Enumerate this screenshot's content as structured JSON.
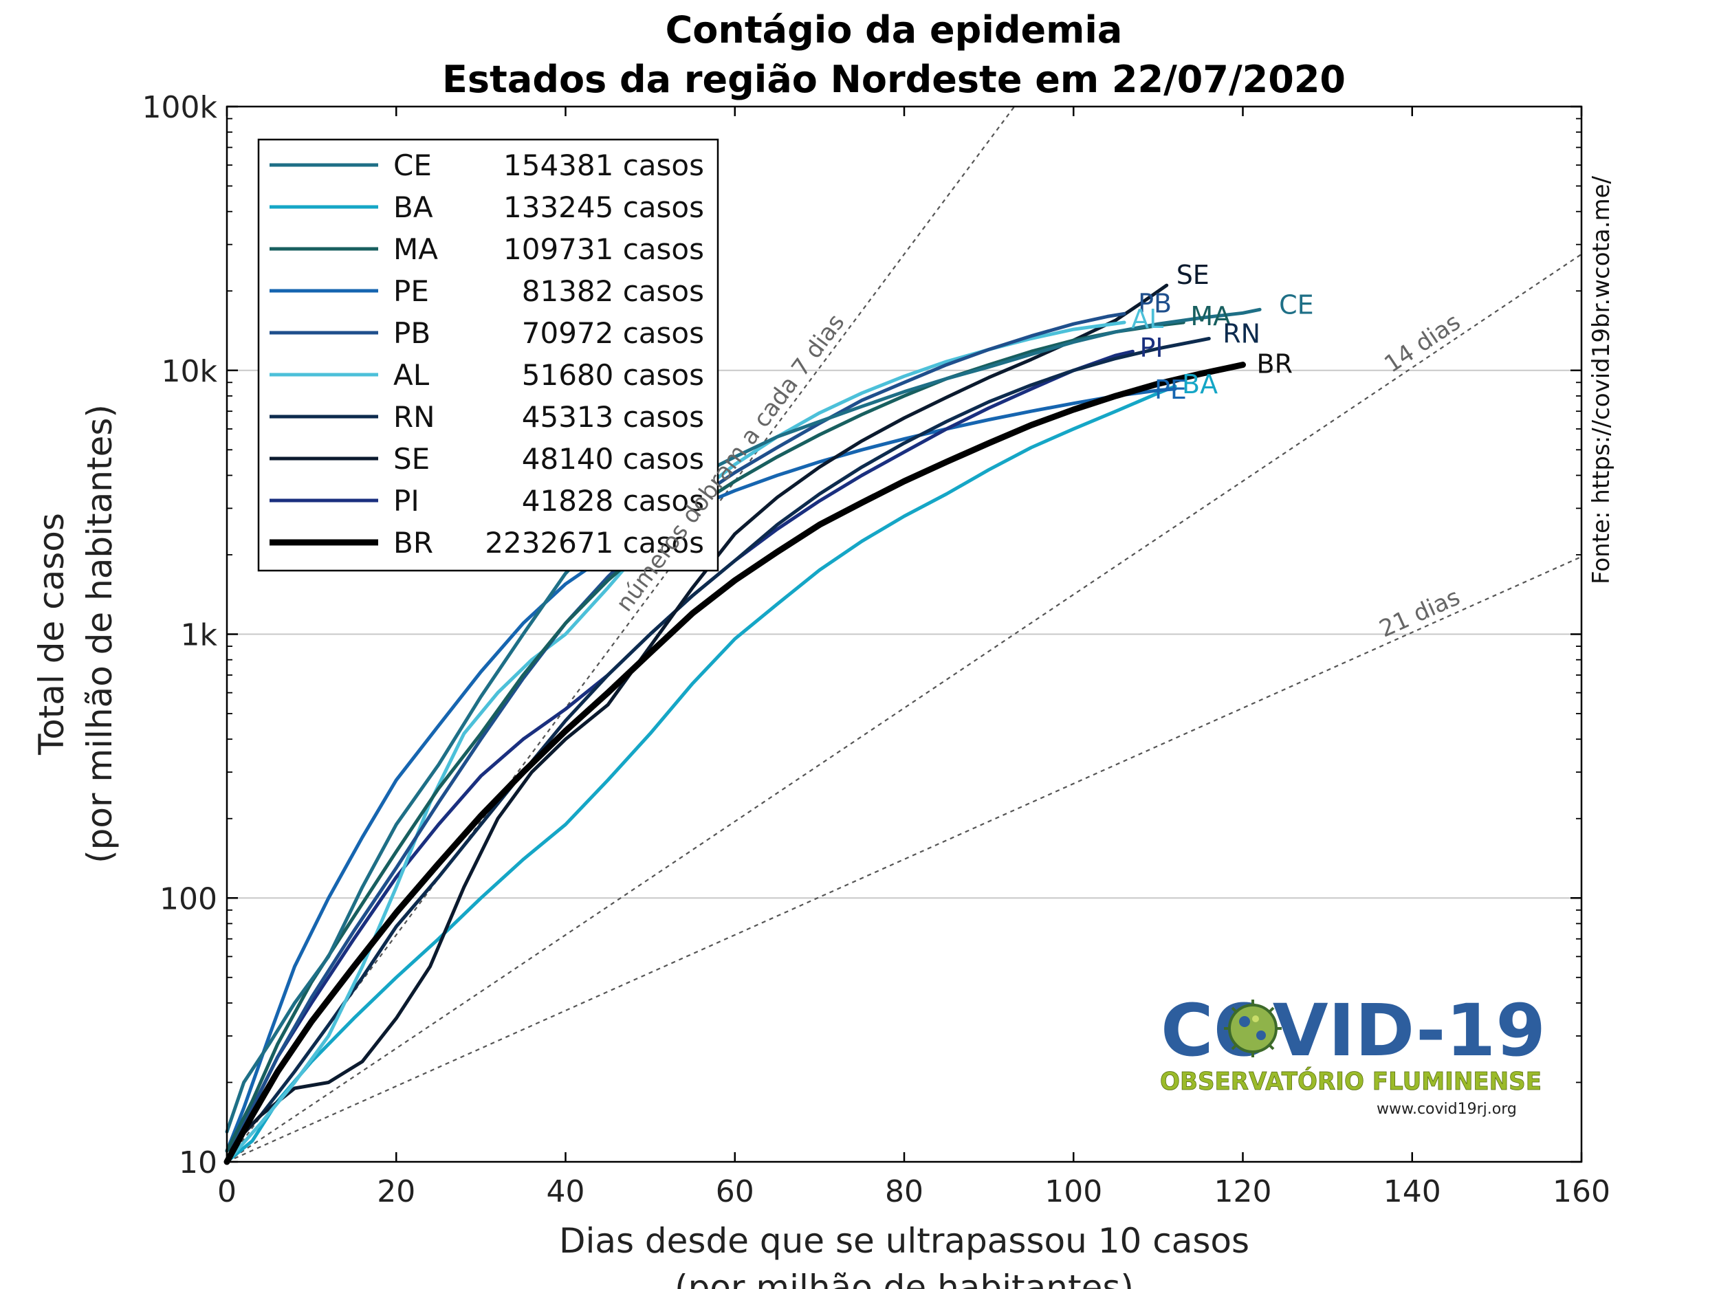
{
  "chart_data": {
    "type": "line",
    "title": "Contágio da epidemia",
    "subtitle": "Estados da região Nordeste em 22/07/2020",
    "xlabel": "Dias desde que se ultrapassou 10 casos",
    "xlabel2": "(por milhão de habitantes)",
    "ylabel": "Total de casos",
    "ylabel2": "(por milhão de habitantes)",
    "xlim": [
      0,
      160
    ],
    "ylim": [
      10,
      100000
    ],
    "yscale": "log",
    "grid": "horizontal",
    "legend_position": "top-left",
    "xticks": [
      "0",
      "20",
      "40",
      "60",
      "80",
      "100",
      "120",
      "140",
      "160"
    ],
    "yticks": [
      {
        "value": 10,
        "label": "10"
      },
      {
        "value": 100,
        "label": "100"
      },
      {
        "value": 1000,
        "label": "1k"
      },
      {
        "value": 10000,
        "label": "10k"
      },
      {
        "value": 100000,
        "label": "100k"
      }
    ],
    "source_text": "Fonte: https://covid19br.wcota.me/",
    "reference_lines": [
      {
        "label": "números dobram a cada 7 dias",
        "doubling_days": 7
      },
      {
        "label": "14 dias",
        "doubling_days": 14
      },
      {
        "label": "21 dias",
        "doubling_days": 21
      }
    ],
    "series": [
      {
        "name": "CE",
        "cases": "154381 casos",
        "color": "#1e6f86",
        "width": 5,
        "points": [
          [
            0,
            13
          ],
          [
            2,
            20
          ],
          [
            5,
            28
          ],
          [
            8,
            40
          ],
          [
            12,
            60
          ],
          [
            16,
            110
          ],
          [
            20,
            190
          ],
          [
            25,
            320
          ],
          [
            30,
            580
          ],
          [
            35,
            1000
          ],
          [
            40,
            1700
          ],
          [
            45,
            2500
          ],
          [
            50,
            3200
          ],
          [
            55,
            3900
          ],
          [
            60,
            4700
          ],
          [
            65,
            5600
          ],
          [
            70,
            6400
          ],
          [
            75,
            7300
          ],
          [
            80,
            8300
          ],
          [
            85,
            9300
          ],
          [
            90,
            10300
          ],
          [
            95,
            11500
          ],
          [
            100,
            12800
          ],
          [
            105,
            14000
          ],
          [
            110,
            15000
          ],
          [
            115,
            15800
          ],
          [
            120,
            16500
          ],
          [
            122,
            17000
          ]
        ]
      },
      {
        "name": "BA",
        "cases": "133245 casos",
        "color": "#15a6c6",
        "width": 5,
        "points": [
          [
            0,
            10
          ],
          [
            3,
            12
          ],
          [
            6,
            17
          ],
          [
            10,
            24
          ],
          [
            15,
            35
          ],
          [
            20,
            50
          ],
          [
            25,
            70
          ],
          [
            30,
            100
          ],
          [
            35,
            140
          ],
          [
            40,
            190
          ],
          [
            45,
            280
          ],
          [
            50,
            420
          ],
          [
            55,
            650
          ],
          [
            60,
            960
          ],
          [
            65,
            1300
          ],
          [
            70,
            1750
          ],
          [
            75,
            2250
          ],
          [
            80,
            2800
          ],
          [
            85,
            3400
          ],
          [
            90,
            4200
          ],
          [
            95,
            5100
          ],
          [
            100,
            6000
          ],
          [
            105,
            7000
          ],
          [
            110,
            8200
          ],
          [
            112,
            8700
          ]
        ]
      },
      {
        "name": "MA",
        "cases": "109731 casos",
        "color": "#185f5f",
        "width": 5,
        "points": [
          [
            0,
            11
          ],
          [
            3,
            17
          ],
          [
            6,
            28
          ],
          [
            10,
            48
          ],
          [
            15,
            85
          ],
          [
            20,
            150
          ],
          [
            25,
            260
          ],
          [
            30,
            420
          ],
          [
            35,
            700
          ],
          [
            40,
            1100
          ],
          [
            45,
            1600
          ],
          [
            50,
            2200
          ],
          [
            55,
            3000
          ],
          [
            60,
            3800
          ],
          [
            65,
            4700
          ],
          [
            70,
            5700
          ],
          [
            75,
            6800
          ],
          [
            80,
            8000
          ],
          [
            85,
            9300
          ],
          [
            90,
            10500
          ],
          [
            95,
            11800
          ],
          [
            100,
            13000
          ],
          [
            105,
            14000
          ],
          [
            110,
            14800
          ],
          [
            113,
            15200
          ]
        ]
      },
      {
        "name": "PE",
        "cases": "81382 casos",
        "color": "#1665b0",
        "width": 5,
        "points": [
          [
            0,
            11
          ],
          [
            2,
            16
          ],
          [
            5,
            30
          ],
          [
            8,
            55
          ],
          [
            12,
            100
          ],
          [
            16,
            170
          ],
          [
            20,
            280
          ],
          [
            25,
            450
          ],
          [
            30,
            720
          ],
          [
            35,
            1100
          ],
          [
            40,
            1550
          ],
          [
            45,
            2000
          ],
          [
            50,
            2500
          ],
          [
            55,
            3000
          ],
          [
            60,
            3500
          ],
          [
            65,
            4000
          ],
          [
            70,
            4500
          ],
          [
            75,
            5000
          ],
          [
            80,
            5500
          ],
          [
            85,
            6000
          ],
          [
            90,
            6500
          ],
          [
            95,
            7000
          ],
          [
            100,
            7500
          ],
          [
            105,
            8000
          ],
          [
            110,
            8400
          ],
          [
            112,
            8500
          ]
        ]
      },
      {
        "name": "PB",
        "cases": "70972 casos",
        "color": "#1f4f8c",
        "width": 5,
        "points": [
          [
            0,
            11
          ],
          [
            3,
            16
          ],
          [
            6,
            25
          ],
          [
            10,
            42
          ],
          [
            15,
            75
          ],
          [
            20,
            130
          ],
          [
            25,
            230
          ],
          [
            30,
            400
          ],
          [
            35,
            680
          ],
          [
            40,
            1100
          ],
          [
            45,
            1650
          ],
          [
            50,
            2350
          ],
          [
            55,
            3200
          ],
          [
            60,
            4100
          ],
          [
            65,
            5100
          ],
          [
            70,
            6300
          ],
          [
            75,
            7700
          ],
          [
            80,
            9000
          ],
          [
            85,
            10500
          ],
          [
            90,
            12000
          ],
          [
            95,
            13500
          ],
          [
            100,
            15000
          ],
          [
            104,
            16000
          ],
          [
            106,
            16400
          ]
        ]
      },
      {
        "name": "AL",
        "cases": "51680 casos",
        "color": "#4cc0d9",
        "width": 5,
        "points": [
          [
            0,
            10
          ],
          [
            4,
            14
          ],
          [
            8,
            20
          ],
          [
            12,
            30
          ],
          [
            16,
            55
          ],
          [
            20,
            110
          ],
          [
            24,
            230
          ],
          [
            28,
            420
          ],
          [
            32,
            600
          ],
          [
            36,
            800
          ],
          [
            40,
            1000
          ],
          [
            45,
            1500
          ],
          [
            50,
            2300
          ],
          [
            55,
            3300
          ],
          [
            60,
            4400
          ],
          [
            65,
            5600
          ],
          [
            70,
            6900
          ],
          [
            75,
            8200
          ],
          [
            80,
            9500
          ],
          [
            85,
            10800
          ],
          [
            90,
            12000
          ],
          [
            95,
            13200
          ],
          [
            100,
            14300
          ],
          [
            106,
            15200
          ]
        ]
      },
      {
        "name": "RN",
        "cases": "45313 casos",
        "color": "#0d2b4e",
        "width": 5,
        "points": [
          [
            0,
            11
          ],
          [
            4,
            15
          ],
          [
            8,
            22
          ],
          [
            12,
            33
          ],
          [
            16,
            50
          ],
          [
            20,
            78
          ],
          [
            25,
            120
          ],
          [
            30,
            190
          ],
          [
            35,
            300
          ],
          [
            40,
            470
          ],
          [
            45,
            700
          ],
          [
            50,
            1000
          ],
          [
            55,
            1400
          ],
          [
            60,
            1900
          ],
          [
            65,
            2600
          ],
          [
            70,
            3400
          ],
          [
            75,
            4300
          ],
          [
            80,
            5300
          ],
          [
            85,
            6400
          ],
          [
            90,
            7600
          ],
          [
            95,
            8800
          ],
          [
            100,
            10000
          ],
          [
            105,
            11100
          ],
          [
            110,
            12100
          ],
          [
            115,
            13000
          ],
          [
            116,
            13200
          ]
        ]
      },
      {
        "name": "SE",
        "cases": "48140 casos",
        "color": "#0b1a2e",
        "width": 5,
        "points": [
          [
            0,
            11
          ],
          [
            4,
            15
          ],
          [
            8,
            19
          ],
          [
            12,
            20
          ],
          [
            16,
            24
          ],
          [
            20,
            35
          ],
          [
            24,
            55
          ],
          [
            28,
            110
          ],
          [
            32,
            200
          ],
          [
            36,
            300
          ],
          [
            40,
            400
          ],
          [
            45,
            540
          ],
          [
            50,
            900
          ],
          [
            55,
            1500
          ],
          [
            60,
            2400
          ],
          [
            65,
            3300
          ],
          [
            70,
            4300
          ],
          [
            75,
            5400
          ],
          [
            80,
            6600
          ],
          [
            85,
            7900
          ],
          [
            90,
            9400
          ],
          [
            95,
            11000
          ],
          [
            100,
            13000
          ],
          [
            105,
            15500
          ],
          [
            108,
            18000
          ],
          [
            111,
            21000
          ]
        ]
      },
      {
        "name": "PI",
        "cases": "41828 casos",
        "color": "#1a2f7f",
        "width": 5,
        "points": [
          [
            0,
            11
          ],
          [
            3,
            16
          ],
          [
            6,
            25
          ],
          [
            10,
            40
          ],
          [
            15,
            70
          ],
          [
            20,
            120
          ],
          [
            25,
            190
          ],
          [
            30,
            290
          ],
          [
            35,
            400
          ],
          [
            40,
            520
          ],
          [
            45,
            700
          ],
          [
            50,
            1000
          ],
          [
            55,
            1400
          ],
          [
            60,
            1900
          ],
          [
            65,
            2500
          ],
          [
            70,
            3200
          ],
          [
            75,
            4000
          ],
          [
            80,
            4900
          ],
          [
            85,
            6000
          ],
          [
            90,
            7200
          ],
          [
            95,
            8500
          ],
          [
            100,
            10000
          ],
          [
            105,
            11400
          ],
          [
            107,
            11800
          ]
        ]
      },
      {
        "name": "BR",
        "cases": "2232671 casos",
        "color": "#000000",
        "width": 9,
        "points": [
          [
            0,
            10
          ],
          [
            3,
            15
          ],
          [
            6,
            22
          ],
          [
            10,
            34
          ],
          [
            15,
            55
          ],
          [
            20,
            88
          ],
          [
            25,
            135
          ],
          [
            30,
            205
          ],
          [
            35,
            300
          ],
          [
            40,
            430
          ],
          [
            45,
            600
          ],
          [
            50,
            850
          ],
          [
            55,
            1200
          ],
          [
            60,
            1600
          ],
          [
            65,
            2050
          ],
          [
            70,
            2600
          ],
          [
            75,
            3150
          ],
          [
            80,
            3800
          ],
          [
            85,
            4500
          ],
          [
            90,
            5300
          ],
          [
            95,
            6200
          ],
          [
            100,
            7100
          ],
          [
            105,
            8000
          ],
          [
            110,
            8900
          ],
          [
            115,
            9700
          ],
          [
            120,
            10500
          ]
        ]
      }
    ]
  },
  "logo": {
    "name": "COVID-19",
    "subtitle": "OBSERVATÓRIO FLUMINENSE",
    "url": "www.covid19rj.org"
  }
}
